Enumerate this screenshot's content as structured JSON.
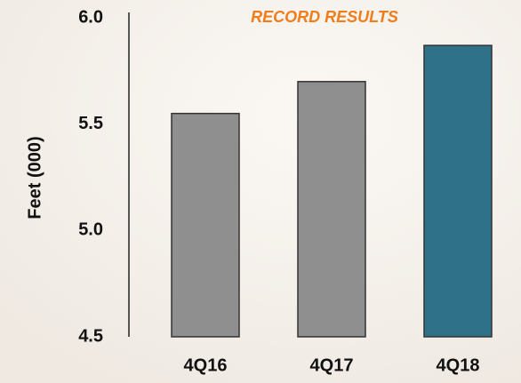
{
  "chart_data": {
    "type": "bar",
    "title": "RECORD RESULTS",
    "y_label": "Feet (000)",
    "categories": [
      "4Q16",
      "4Q17",
      "4Q18"
    ],
    "values": [
      5.55,
      5.7,
      5.87
    ],
    "colors": [
      "#8f8f8f",
      "#8f8f8f",
      "#2f7188"
    ],
    "title_color": "#f07d1a",
    "ylim": [
      4.5,
      6.0
    ],
    "yticks": [
      4.5,
      {
        "value": 5,
        "label": "5.0"
      },
      5.5,
      {
        "value": 6,
        "label": "6.0"
      }
    ],
    "grid": false
  }
}
